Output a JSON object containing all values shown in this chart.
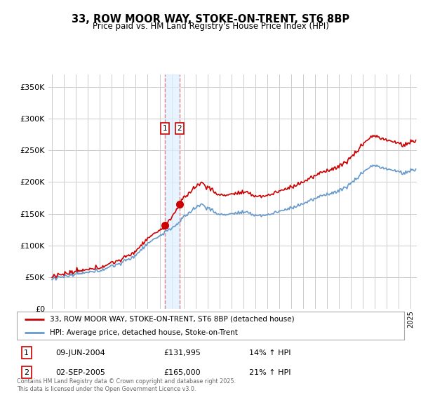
{
  "title": "33, ROW MOOR WAY, STOKE-ON-TRENT, ST6 8BP",
  "subtitle": "Price paid vs. HM Land Registry's House Price Index (HPI)",
  "legend_line1": "33, ROW MOOR WAY, STOKE-ON-TRENT, ST6 8BP (detached house)",
  "legend_line2": "HPI: Average price, detached house, Stoke-on-Trent",
  "annotation1_label": "1",
  "annotation1_date": "09-JUN-2004",
  "annotation1_price": "£131,995",
  "annotation1_hpi": "14% ↑ HPI",
  "annotation2_label": "2",
  "annotation2_date": "02-SEP-2005",
  "annotation2_price": "£165,000",
  "annotation2_hpi": "21% ↑ HPI",
  "footnote": "Contains HM Land Registry data © Crown copyright and database right 2025.\nThis data is licensed under the Open Government Licence v3.0.",
  "red_color": "#cc0000",
  "blue_color": "#6699cc",
  "vline_color": "#dd8888",
  "vshade_color": "#ddeeff",
  "annotation_box_color": "#cc0000",
  "ylim": [
    0,
    370000
  ],
  "yticks": [
    0,
    50000,
    100000,
    150000,
    200000,
    250000,
    300000,
    350000
  ],
  "background_color": "#ffffff",
  "grid_color": "#cccccc",
  "purchase1_year": 2004.44,
  "purchase2_year": 2005.67,
  "purchase1_price": 131995,
  "purchase2_price": 165000
}
